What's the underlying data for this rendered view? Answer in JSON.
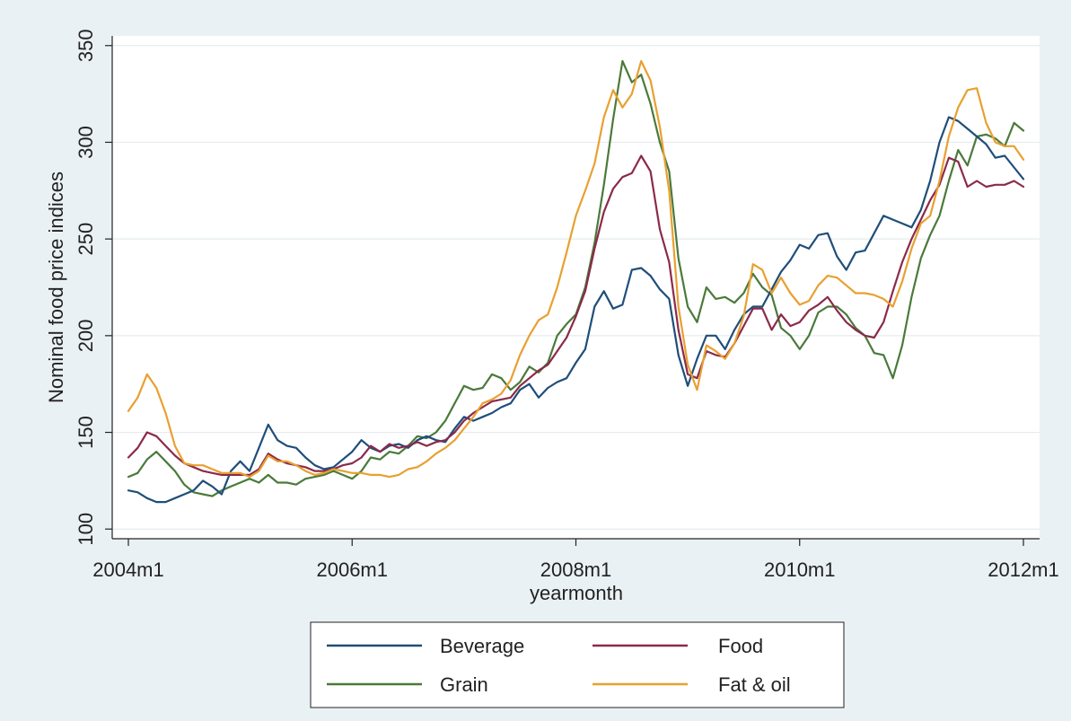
{
  "chart_data": {
    "type": "line",
    "xlabel": "yearmonth",
    "ylabel": "Nominal food price indices",
    "x_start": "2004m1",
    "x_ticks": [
      "2004m1",
      "2006m1",
      "2008m1",
      "2010m1",
      "2012m1"
    ],
    "y_ticks": [
      100,
      150,
      200,
      250,
      300,
      350
    ],
    "ylim": [
      95,
      355
    ],
    "xlim": [
      "2003m11",
      "2012m2"
    ],
    "grid": "horizontal",
    "legend_position": "bottom",
    "series": [
      {
        "name": "Beverage",
        "color": "#1f4e79",
        "values": [
          120,
          119,
          116,
          114,
          114,
          116,
          118,
          120,
          125,
          122,
          118,
          130,
          135,
          130,
          142,
          154,
          146,
          143,
          142,
          137,
          133,
          131,
          132,
          136,
          140,
          146,
          142,
          140,
          143,
          144,
          142,
          146,
          148,
          146,
          145,
          152,
          158,
          156,
          158,
          160,
          163,
          165,
          172,
          175,
          168,
          173,
          176,
          178,
          186,
          193,
          215,
          223,
          214,
          216,
          234,
          235,
          231,
          224,
          219,
          190,
          174,
          188,
          200,
          200,
          193,
          203,
          211,
          215,
          215,
          224,
          233,
          239,
          247,
          245,
          252,
          253,
          241,
          234,
          243,
          244,
          253,
          262,
          260,
          258,
          256,
          265,
          280,
          300,
          313,
          311,
          307,
          303,
          299,
          292,
          293,
          287,
          281
        ]
      },
      {
        "name": "Food",
        "color": "#8b2a4a",
        "values": [
          137,
          142,
          150,
          148,
          143,
          138,
          134,
          132,
          130,
          129,
          128,
          128,
          128,
          128,
          131,
          139,
          136,
          134,
          133,
          132,
          130,
          130,
          131,
          133,
          134,
          137,
          143,
          140,
          144,
          142,
          143,
          145,
          143,
          145,
          146,
          150,
          156,
          160,
          163,
          166,
          167,
          168,
          174,
          178,
          182,
          185,
          192,
          199,
          210,
          223,
          245,
          264,
          276,
          282,
          284,
          293,
          285,
          255,
          238,
          203,
          180,
          178,
          192,
          190,
          189,
          196,
          205,
          214,
          214,
          203,
          211,
          205,
          207,
          213,
          216,
          220,
          213,
          207,
          203,
          200,
          199,
          207,
          223,
          238,
          250,
          260,
          270,
          278,
          292,
          290,
          277,
          280,
          277,
          278,
          278,
          280,
          277
        ]
      },
      {
        "name": "Grain",
        "color": "#4a7a3a",
        "values": [
          127,
          129,
          136,
          140,
          135,
          130,
          123,
          119,
          118,
          117,
          120,
          122,
          124,
          126,
          124,
          128,
          124,
          124,
          123,
          126,
          127,
          128,
          130,
          128,
          126,
          130,
          137,
          136,
          140,
          139,
          143,
          148,
          147,
          150,
          156,
          165,
          174,
          172,
          173,
          180,
          178,
          172,
          176,
          184,
          181,
          186,
          200,
          206,
          211,
          225,
          248,
          278,
          312,
          342,
          331,
          335,
          320,
          300,
          285,
          240,
          215,
          207,
          225,
          219,
          220,
          217,
          222,
          232,
          225,
          221,
          204,
          200,
          193,
          200,
          212,
          215,
          215,
          211,
          204,
          200,
          191,
          190,
          178,
          195,
          220,
          240,
          252,
          262,
          280,
          296,
          288,
          303,
          304,
          302,
          298,
          310,
          306
        ]
      },
      {
        "name": "Fat & oil",
        "color": "#e8a030",
        "values": [
          161,
          168,
          180,
          173,
          160,
          143,
          134,
          133,
          133,
          131,
          129,
          129,
          129,
          127,
          130,
          138,
          135,
          135,
          133,
          130,
          128,
          129,
          131,
          130,
          129,
          129,
          128,
          128,
          127,
          128,
          131,
          132,
          135,
          139,
          142,
          146,
          152,
          158,
          165,
          167,
          170,
          177,
          190,
          200,
          208,
          211,
          225,
          243,
          262,
          275,
          289,
          313,
          327,
          318,
          325,
          342,
          332,
          308,
          275,
          215,
          185,
          172,
          195,
          192,
          188,
          196,
          210,
          237,
          234,
          222,
          230,
          222,
          216,
          218,
          226,
          231,
          230,
          226,
          222,
          222,
          221,
          219,
          215,
          228,
          245,
          258,
          262,
          280,
          303,
          318,
          327,
          328,
          310,
          300,
          298,
          298,
          291
        ]
      }
    ]
  }
}
